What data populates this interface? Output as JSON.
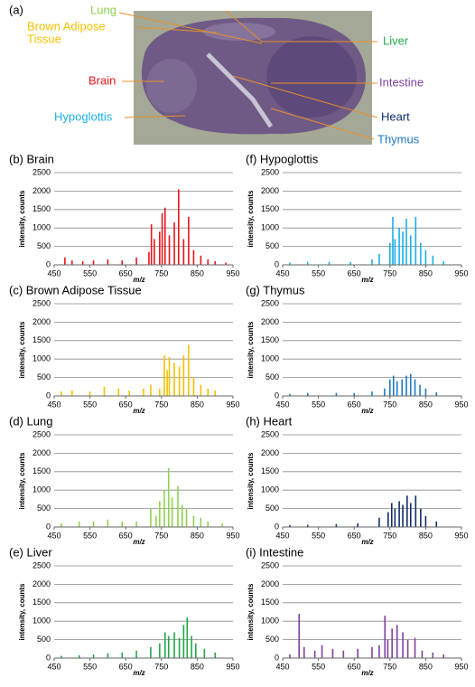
{
  "panel_a": {
    "label": "(a)",
    "annotations": [
      {
        "lines": [
          "Lung"
        ],
        "color": "#8fd14f"
      },
      {
        "lines": [
          "Brown Adipose",
          "Tissue"
        ],
        "color": "#f5c000"
      },
      {
        "lines": [
          "Brain"
        ],
        "color": "#e8141c"
      },
      {
        "lines": [
          "Hypoglottis"
        ],
        "color": "#1ab0e8"
      },
      {
        "lines": [
          "Liver"
        ],
        "color": "#22a84a"
      },
      {
        "lines": [
          "Intestine"
        ],
        "color": "#7f3fa0"
      },
      {
        "lines": [
          "Heart"
        ],
        "color": "#0f2d6b"
      },
      {
        "lines": [
          "Thymus"
        ],
        "color": "#1f78c1"
      }
    ]
  },
  "chart_data": [
    {
      "type": "stem",
      "title": "(b) Brain",
      "x_label": "m/z",
      "y_label": "intensity, counts",
      "color": "#e8141c",
      "x": [
        480,
        500,
        530,
        560,
        600,
        640,
        680,
        715,
        722,
        730,
        745,
        752,
        760,
        772,
        786,
        798,
        812,
        826,
        840,
        860,
        880,
        900,
        930
      ],
      "values": [
        200,
        120,
        100,
        120,
        150,
        120,
        200,
        350,
        1100,
        700,
        900,
        1400,
        1550,
        800,
        1150,
        2050,
        700,
        1300,
        400,
        250,
        150,
        100,
        60
      ],
      "xlim": [
        450,
        950
      ],
      "xticks": [
        450,
        550,
        650,
        750,
        850,
        950
      ],
      "ylim": [
        0,
        2500
      ],
      "yticks": [
        0,
        500,
        1000,
        1500,
        2000,
        2500
      ],
      "grid": true
    },
    {
      "type": "stem",
      "title": "(c) Brown Adipose Tissue",
      "x_label": "m/z",
      "y_label": "intensity, counts",
      "color": "#f5c000",
      "x": [
        470,
        500,
        550,
        590,
        630,
        660,
        700,
        720,
        745,
        758,
        766,
        772,
        786,
        800,
        812,
        826,
        840,
        860,
        880,
        900
      ],
      "values": [
        120,
        150,
        120,
        250,
        200,
        150,
        200,
        300,
        200,
        1100,
        700,
        1050,
        900,
        800,
        1100,
        1380,
        500,
        300,
        200,
        150
      ],
      "xlim": [
        450,
        950
      ],
      "xticks": [
        450,
        550,
        650,
        750,
        850,
        950
      ],
      "ylim": [
        0,
        2500
      ],
      "yticks": [
        0,
        500,
        1000,
        1500,
        2000,
        2500
      ],
      "grid": true
    },
    {
      "type": "stem",
      "title": "(d) Lung",
      "x_label": "m/z",
      "y_label": "intensity, counts",
      "color": "#8fd14f",
      "x": [
        470,
        520,
        560,
        600,
        640,
        680,
        720,
        735,
        745,
        758,
        770,
        780,
        796,
        808,
        820,
        840,
        860,
        880,
        920
      ],
      "values": [
        100,
        150,
        150,
        200,
        150,
        150,
        500,
        300,
        700,
        1000,
        1600,
        800,
        1100,
        600,
        500,
        300,
        250,
        150,
        100
      ],
      "xlim": [
        450,
        950
      ],
      "xticks": [
        450,
        550,
        650,
        750,
        850,
        950
      ],
      "ylim": [
        0,
        2500
      ],
      "yticks": [
        0,
        500,
        1000,
        1500,
        2000,
        2500
      ],
      "grid": true
    },
    {
      "type": "stem",
      "title": "(e) Liver",
      "x_label": "m/z",
      "y_label": "intensity, counts",
      "color": "#22a84a",
      "x": [
        470,
        520,
        560,
        600,
        640,
        680,
        720,
        745,
        760,
        770,
        786,
        800,
        812,
        822,
        834,
        846,
        870,
        900
      ],
      "values": [
        60,
        80,
        100,
        130,
        150,
        200,
        300,
        400,
        700,
        600,
        700,
        550,
        900,
        1100,
        600,
        400,
        250,
        150
      ],
      "xlim": [
        450,
        950
      ],
      "xticks": [
        450,
        550,
        650,
        750,
        850,
        950
      ],
      "ylim": [
        0,
        2500
      ],
      "yticks": [
        0,
        500,
        1000,
        1500,
        2000,
        2500
      ],
      "grid": true
    },
    {
      "type": "stem",
      "title": "(f) Hypoglottis",
      "x_label": "m/z",
      "y_label": "intensity, counts",
      "color": "#1ab0e8",
      "x": [
        470,
        520,
        580,
        640,
        700,
        720,
        750,
        758,
        764,
        776,
        786,
        796,
        808,
        822,
        836,
        850,
        870,
        900
      ],
      "values": [
        60,
        80,
        80,
        80,
        150,
        300,
        600,
        1300,
        700,
        1000,
        900,
        1250,
        800,
        1300,
        600,
        400,
        250,
        100
      ],
      "xlim": [
        450,
        950
      ],
      "xticks": [
        450,
        550,
        650,
        750,
        850,
        950
      ],
      "ylim": [
        0,
        2500
      ],
      "yticks": [
        0,
        500,
        1000,
        1500,
        2000,
        2500
      ],
      "grid": true
    },
    {
      "type": "stem",
      "title": "(g) Thymus",
      "x_label": "m/z",
      "y_label": "intensity, counts",
      "color": "#1f78c1",
      "x": [
        470,
        520,
        600,
        650,
        700,
        735,
        750,
        760,
        770,
        784,
        796,
        808,
        820,
        834,
        850,
        880
      ],
      "values": [
        50,
        80,
        80,
        80,
        120,
        200,
        450,
        550,
        400,
        450,
        550,
        600,
        450,
        300,
        200,
        100
      ],
      "xlim": [
        450,
        950
      ],
      "xticks": [
        450,
        550,
        650,
        750,
        850,
        950
      ],
      "ylim": [
        0,
        2500
      ],
      "yticks": [
        0,
        500,
        1000,
        1500,
        2000,
        2500
      ],
      "grid": true
    },
    {
      "type": "stem",
      "title": "(h) Heart",
      "x_label": "m/z",
      "y_label": "intensity, counts",
      "color": "#0f2d6b",
      "x": [
        470,
        520,
        600,
        660,
        720,
        745,
        755,
        764,
        776,
        786,
        798,
        808,
        822,
        836,
        850,
        880
      ],
      "values": [
        50,
        60,
        80,
        100,
        250,
        400,
        650,
        500,
        700,
        600,
        850,
        650,
        850,
        500,
        300,
        150
      ],
      "xlim": [
        450,
        950
      ],
      "xticks": [
        450,
        550,
        650,
        750,
        850,
        950
      ],
      "ylim": [
        0,
        2500
      ],
      "yticks": [
        0,
        500,
        1000,
        1500,
        2000,
        2500
      ],
      "grid": true
    },
    {
      "type": "stem",
      "title": "(i) Intestine",
      "x_label": "m/z",
      "y_label": "intensity, counts",
      "color": "#7f3fa0",
      "x": [
        470,
        496,
        510,
        540,
        560,
        590,
        620,
        660,
        700,
        720,
        736,
        744,
        756,
        770,
        786,
        800,
        820,
        840,
        870,
        900
      ],
      "values": [
        100,
        1200,
        300,
        200,
        350,
        250,
        200,
        250,
        300,
        350,
        1150,
        500,
        800,
        900,
        700,
        500,
        550,
        200,
        150,
        100
      ],
      "xlim": [
        450,
        950
      ],
      "xticks": [
        450,
        550,
        650,
        750,
        850,
        950
      ],
      "ylim": [
        0,
        2500
      ],
      "yticks": [
        0,
        500,
        1000,
        1500,
        2000,
        2500
      ],
      "grid": true
    }
  ]
}
